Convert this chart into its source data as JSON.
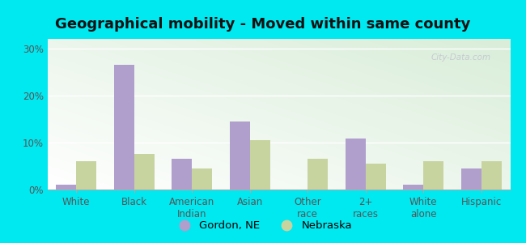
{
  "title": "Geographical mobility - Moved within same county",
  "categories": [
    "White",
    "Black",
    "American\nIndian",
    "Asian",
    "Other\nrace",
    "2+\nraces",
    "White\nalone",
    "Hispanic"
  ],
  "gordon_values": [
    1.0,
    26.5,
    6.5,
    14.5,
    0.0,
    10.8,
    1.0,
    4.5
  ],
  "nebraska_values": [
    6.0,
    7.5,
    4.5,
    10.5,
    6.5,
    5.5,
    6.0,
    6.0
  ],
  "gordon_color": "#b09fcc",
  "nebraska_color": "#c8d4a0",
  "bg_outer": "#00e8f0",
  "ylim": [
    0,
    32
  ],
  "yticks": [
    0,
    10,
    20,
    30
  ],
  "ytick_labels": [
    "0%",
    "10%",
    "20%",
    "30%"
  ],
  "legend_gordon": "Gordon, NE",
  "legend_nebraska": "Nebraska",
  "title_fontsize": 13,
  "tick_fontsize": 8.5,
  "legend_fontsize": 9.5
}
